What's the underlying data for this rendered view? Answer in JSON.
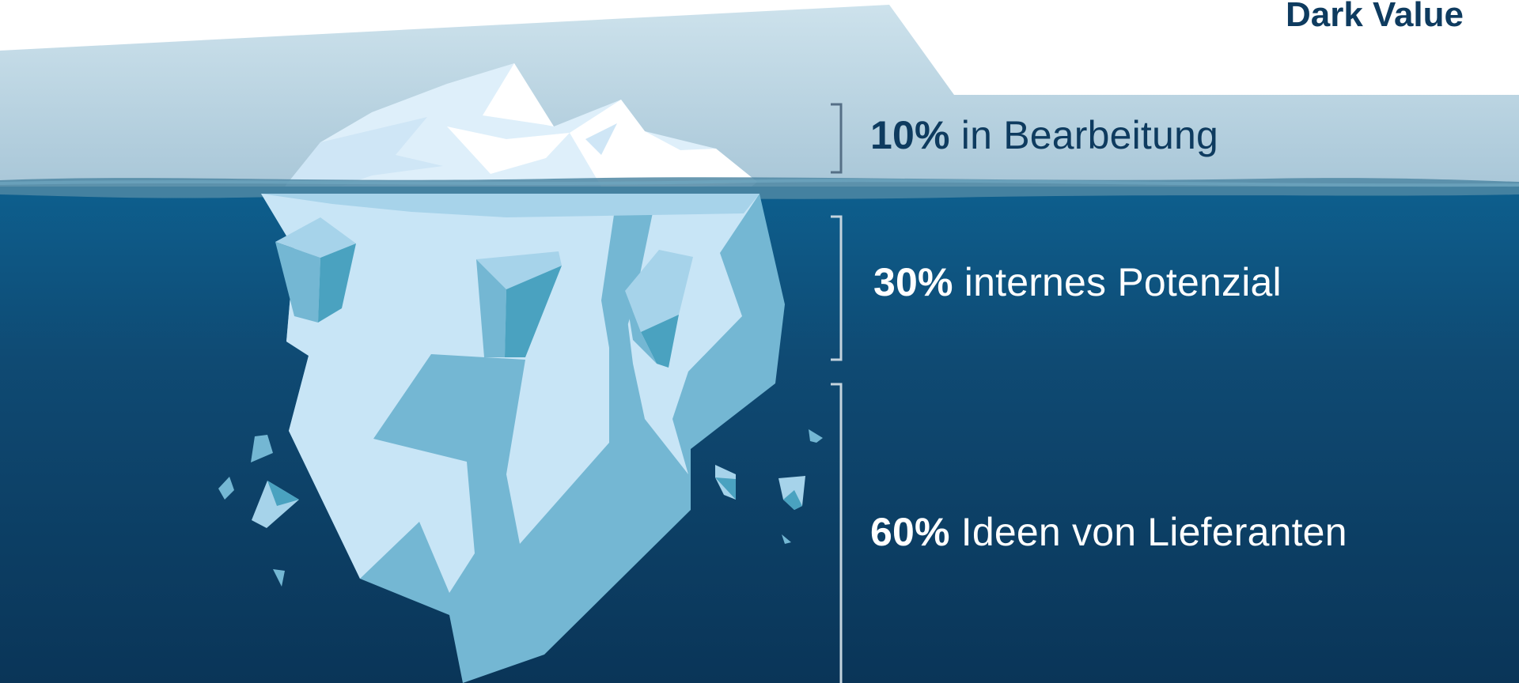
{
  "title": "Dark Value",
  "logo_text": "",
  "segments": [
    {
      "percent": "10%",
      "text": "in Bearbeitung"
    },
    {
      "percent": "30%",
      "text": "internes Potenzial"
    },
    {
      "percent": "60%",
      "text": "Ideen von Lieferanten"
    }
  ],
  "colors": {
    "sky_top": "#c9dfea",
    "sky_bottom": "#aecbdb",
    "ocean_top": "#0d5d8b",
    "ocean_bottom": "#0a3558",
    "ice_light": "#c8e5f6",
    "ice_mid": "#74b7d3",
    "ice_dark": "#4aa2c0",
    "text_dark": "#0e3b5f",
    "text_light": "#ffffff",
    "bracket": "#c4d4de"
  }
}
